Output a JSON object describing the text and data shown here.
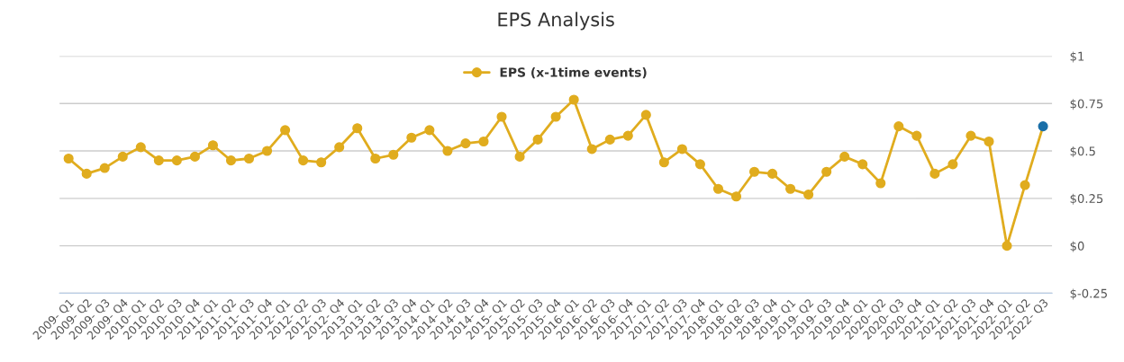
{
  "chart_data": {
    "type": "line",
    "title": "EPS Analysis",
    "categories": [
      "2009- Q1",
      "2009- Q2",
      "2009- Q3",
      "2009- Q4",
      "2010- Q1",
      "2010- Q2",
      "2010- Q3",
      "2010- Q4",
      "2011- Q1",
      "2011- Q2",
      "2011- Q3",
      "2011- Q4",
      "2012- Q1",
      "2012- Q2",
      "2012- Q3",
      "2012- Q4",
      "2013- Q1",
      "2013- Q2",
      "2013- Q3",
      "2013- Q4",
      "2014- Q1",
      "2014- Q2",
      "2014- Q3",
      "2014- Q4",
      "2015- Q1",
      "2015- Q2",
      "2015- Q3",
      "2015- Q4",
      "2016- Q1",
      "2016- Q2",
      "2016- Q3",
      "2016- Q4",
      "2017- Q1",
      "2017- Q2",
      "2017- Q3",
      "2017- Q4",
      "2018- Q1",
      "2018- Q2",
      "2018- Q3",
      "2018- Q4",
      "2019- Q1",
      "2019- Q2",
      "2019- Q3",
      "2019- Q4",
      "2020- Q1",
      "2020- Q2",
      "2020- Q3",
      "2020- Q4",
      "2021- Q1",
      "2021- Q2",
      "2021- Q3",
      "2021- Q4",
      "2022- Q1",
      "2022- Q2",
      "2022- Q3"
    ],
    "series": [
      {
        "name": "EPS (x-1time events)",
        "color": "#e0ac1e",
        "colors": [
          "#e0ac1e",
          "#e0ac1e",
          "#e0ac1e",
          "#e0ac1e",
          "#e0ac1e",
          "#e0ac1e",
          "#e0ac1e",
          "#e0ac1e",
          "#e0ac1e",
          "#e0ac1e",
          "#e0ac1e",
          "#e0ac1e",
          "#e0ac1e",
          "#e0ac1e",
          "#e0ac1e",
          "#e0ac1e",
          "#e0ac1e",
          "#e0ac1e",
          "#e0ac1e",
          "#e0ac1e",
          "#e0ac1e",
          "#e0ac1e",
          "#e0ac1e",
          "#e0ac1e",
          "#e0ac1e",
          "#e0ac1e",
          "#e0ac1e",
          "#e0ac1e",
          "#e0ac1e",
          "#e0ac1e",
          "#e0ac1e",
          "#e0ac1e",
          "#e0ac1e",
          "#e0ac1e",
          "#e0ac1e",
          "#e0ac1e",
          "#e0ac1e",
          "#e0ac1e",
          "#e0ac1e",
          "#e0ac1e",
          "#e0ac1e",
          "#e0ac1e",
          "#e0ac1e",
          "#e0ac1e",
          "#e0ac1e",
          "#e0ac1e",
          "#e0ac1e",
          "#e0ac1e",
          "#e0ac1e",
          "#e0ac1e",
          "#e0ac1e",
          "#e0ac1e",
          "#e0ac1e",
          "#e0ac1e",
          "#1a6fa8"
        ],
        "values": [
          0.46,
          0.38,
          0.41,
          0.47,
          0.52,
          0.45,
          0.45,
          0.47,
          0.53,
          0.45,
          0.46,
          0.5,
          0.61,
          0.45,
          0.44,
          0.52,
          0.62,
          0.46,
          0.48,
          0.57,
          0.61,
          0.5,
          0.54,
          0.55,
          0.68,
          0.47,
          0.56,
          0.68,
          0.77,
          0.51,
          0.56,
          0.58,
          0.69,
          0.44,
          0.51,
          0.43,
          0.3,
          0.26,
          0.39,
          0.38,
          0.3,
          0.27,
          0.39,
          0.47,
          0.43,
          0.33,
          0.63,
          0.58,
          0.38,
          0.43,
          0.58,
          0.55,
          0.0,
          0.32,
          0.63
        ]
      }
    ],
    "ylim": [
      -0.25,
      1
    ],
    "yticks": [
      {
        "value": -0.25,
        "label": "$-0.25"
      },
      {
        "value": 0,
        "label": "$0"
      },
      {
        "value": 0.25,
        "label": "$0.25"
      },
      {
        "value": 0.5,
        "label": "$0.5"
      },
      {
        "value": 0.75,
        "label": "$0.75"
      },
      {
        "value": 1,
        "label": "$1"
      }
    ],
    "grid": "y",
    "legend": "top",
    "marker": "circle",
    "line_style": "solid"
  }
}
